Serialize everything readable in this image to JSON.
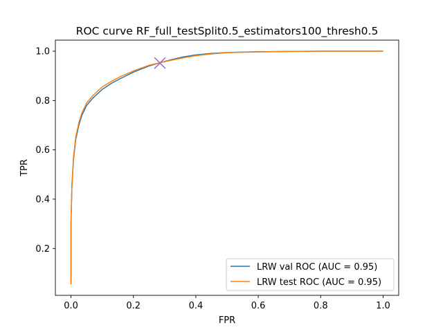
{
  "chart_data": {
    "type": "line",
    "title": "ROC curve RF_full_testSplit0.5_estimators100_thresh0.5",
    "xlabel": "FPR",
    "ylabel": "TPR",
    "xlim": [
      -0.05,
      1.05
    ],
    "ylim": [
      0.01,
      1.045
    ],
    "xticks": [
      0.0,
      0.2,
      0.4,
      0.6,
      0.8,
      1.0
    ],
    "xtick_labels": [
      "0.0",
      "0.2",
      "0.4",
      "0.6",
      "0.8",
      "1.0"
    ],
    "yticks": [
      0.2,
      0.4,
      0.6,
      0.8,
      1.0
    ],
    "ytick_labels": [
      "0.2",
      "0.4",
      "0.6",
      "0.8",
      "1.0"
    ],
    "grid": false,
    "legend_position": "lower-right",
    "series": [
      {
        "name": "LRW val ROC (AUC = 0.95)",
        "color": "#1f77b4",
        "x": [
          0.0,
          0.0,
          0.003,
          0.008,
          0.015,
          0.025,
          0.035,
          0.05,
          0.07,
          0.1,
          0.13,
          0.16,
          0.2,
          0.25,
          0.29,
          0.32,
          0.36,
          0.4,
          0.45,
          0.5,
          0.6,
          0.7,
          0.8,
          0.9,
          1.0
        ],
        "y": [
          0.055,
          0.3,
          0.45,
          0.56,
          0.64,
          0.7,
          0.74,
          0.78,
          0.81,
          0.845,
          0.87,
          0.89,
          0.915,
          0.94,
          0.955,
          0.965,
          0.977,
          0.985,
          0.991,
          0.995,
          0.998,
          0.999,
          1.0,
          1.0,
          1.0
        ]
      },
      {
        "name": "LRW test ROC (AUC = 0.95)",
        "color": "#ff7f0e",
        "x": [
          0.0,
          0.0,
          0.003,
          0.008,
          0.015,
          0.025,
          0.035,
          0.05,
          0.07,
          0.1,
          0.13,
          0.16,
          0.2,
          0.25,
          0.29,
          0.32,
          0.36,
          0.4,
          0.45,
          0.5,
          0.6,
          0.7,
          0.8,
          0.9,
          1.0
        ],
        "y": [
          0.055,
          0.31,
          0.46,
          0.57,
          0.65,
          0.71,
          0.75,
          0.79,
          0.82,
          0.855,
          0.878,
          0.898,
          0.92,
          0.943,
          0.955,
          0.963,
          0.973,
          0.982,
          0.989,
          0.994,
          0.997,
          0.999,
          1.0,
          1.0,
          1.0
        ]
      }
    ],
    "markers": [
      {
        "x": 0.285,
        "y": 0.952,
        "shape": "x",
        "color": "#9467bd"
      }
    ]
  }
}
